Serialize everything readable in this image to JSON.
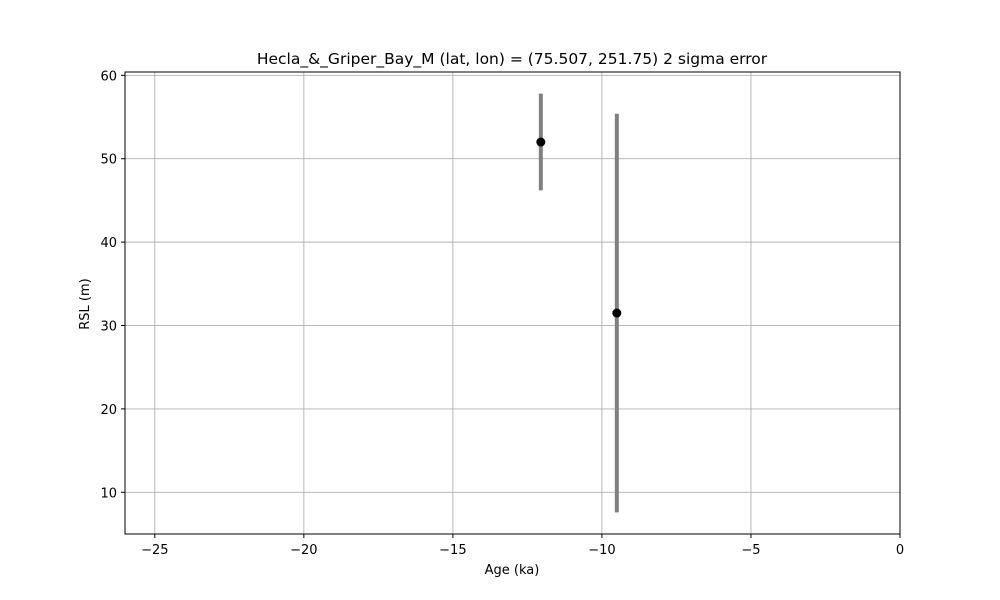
{
  "chart_data": {
    "type": "scatter",
    "title": "Hecla_&_Griper_Bay_M (lat, lon) = (75.507, 251.75)  2 sigma error",
    "xlabel": "Age (ka)",
    "ylabel": "RSL (m)",
    "xlim": [
      -26,
      0
    ],
    "ylim": [
      5,
      60.4
    ],
    "xticks": [
      -25,
      -20,
      -15,
      -10,
      -5,
      0
    ],
    "xtick_labels": [
      "−25",
      "−20",
      "−15",
      "−10",
      "−5",
      "0"
    ],
    "yticks": [
      10,
      20,
      30,
      40,
      50,
      60
    ],
    "ytick_labels": [
      "10",
      "20",
      "30",
      "40",
      "50",
      "60"
    ],
    "grid": true,
    "point_color": "#000000",
    "errorbar_color": "#808080",
    "points": [
      {
        "x": -12.05,
        "y": 52.0,
        "yerr_low": 46.2,
        "yerr_high": 57.8
      },
      {
        "x": -9.5,
        "y": 31.5,
        "yerr_low": 7.6,
        "yerr_high": 55.4
      }
    ]
  }
}
